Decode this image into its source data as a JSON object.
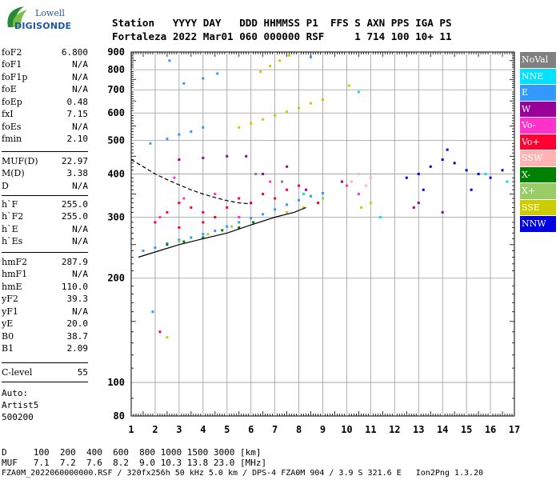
{
  "logo": {
    "line1": "Lowell",
    "line2": "DIGISONDE"
  },
  "header": {
    "line1": "Station   YYYY DAY   DDD HHMMSS P1  FFS S AXN PPS IGA PS",
    "line2": "Fortaleza 2022 Mar01 060 000000 RSF     1 714 100 10+ 11"
  },
  "params_group1": [
    {
      "name": "foF2",
      "value": "6.800"
    },
    {
      "name": "foF1",
      "value": "N/A"
    },
    {
      "name": "foF1p",
      "value": "N/A"
    },
    {
      "name": "foE",
      "value": "N/A"
    },
    {
      "name": "foEp",
      "value": "0.48"
    },
    {
      "name": "fxI",
      "value": "7.15"
    },
    {
      "name": "foEs",
      "value": "N/A"
    },
    {
      "name": "fmin",
      "value": "2.10"
    }
  ],
  "params_group2": [
    {
      "name": "MUF(D)",
      "value": "22.97"
    },
    {
      "name": "M(D)",
      "value": "3.38"
    },
    {
      "name": "D",
      "value": "N/A"
    }
  ],
  "params_group3": [
    {
      "name": "h`F",
      "value": "255.0"
    },
    {
      "name": "h`F2",
      "value": "255.0"
    },
    {
      "name": "h`E",
      "value": "N/A"
    },
    {
      "name": "h`Es",
      "value": "N/A"
    }
  ],
  "params_group4": [
    {
      "name": "hmF2",
      "value": "287.9"
    },
    {
      "name": "hmF1",
      "value": "N/A"
    },
    {
      "name": "hmE",
      "value": "110.0"
    },
    {
      "name": "yF2",
      "value": "39.3"
    },
    {
      "name": "yF1",
      "value": "N/A"
    },
    {
      "name": "yE",
      "value": "20.0"
    },
    {
      "name": "B0",
      "value": "38.7"
    },
    {
      "name": "B1",
      "value": "2.09"
    }
  ],
  "params_group5": [
    {
      "name": "C-level",
      "value": "55"
    }
  ],
  "auto": {
    "line1": "Auto:",
    "line2": "Artist5",
    "line3": "500200"
  },
  "legend": [
    {
      "label": "NoVal",
      "color": "#808080"
    },
    {
      "label": "NNE",
      "color": "#00e0ff"
    },
    {
      "label": "E",
      "color": "#3399ff"
    },
    {
      "label": "W",
      "color": "#990099"
    },
    {
      "label": "Vo-",
      "color": "#ff33cc"
    },
    {
      "label": "Vo+",
      "color": "#ff0033"
    },
    {
      "label": "SSW",
      "color": "#ffb3b3"
    },
    {
      "label": "X-",
      "color": "#008000"
    },
    {
      "label": "X+",
      "color": "#99cc66"
    },
    {
      "label": "SSE",
      "color": "#cccc00"
    },
    {
      "label": "NNW",
      "color": "#0000e0"
    }
  ],
  "footer": {
    "line1": "D     100  200  400  600  800 1000 1500 3000 [km]",
    "line2": "MUF   7.1  7.2  7.6  8.2  9.0 10.3 13.8 23.0 [MHz]",
    "line3": "FZA0M_2022060000000.RSF / 320fx256h 50 kHz 5.0 km / DPS-4 FZA0M 904 / 3.9 S 321.6 E   Ion2Png 1.3.20"
  },
  "chart_data": {
    "type": "scatter",
    "title": "",
    "xlabel": "",
    "ylabel": "",
    "xlim": [
      1,
      17
    ],
    "ylim": [
      80,
      900
    ],
    "y_scale": "log",
    "xticks": [
      1,
      2,
      3,
      4,
      5,
      6,
      7,
      8,
      9,
      10,
      11,
      12,
      13,
      14,
      15,
      16,
      17
    ],
    "yticks": [
      80,
      100,
      200,
      300,
      400,
      500,
      600,
      700,
      800,
      900
    ],
    "grid": true,
    "legend_position": "right",
    "series": [
      {
        "name": "E",
        "color": "#3399ff",
        "points": [
          [
            1.5,
            240
          ],
          [
            2,
            245
          ],
          [
            2.5,
            252
          ],
          [
            3,
            258
          ],
          [
            3.5,
            262
          ],
          [
            4,
            268
          ],
          [
            4.5,
            274
          ],
          [
            5,
            282
          ],
          [
            5.5,
            290
          ],
          [
            6,
            298
          ],
          [
            6.5,
            306
          ],
          [
            7,
            316
          ],
          [
            7.5,
            326
          ],
          [
            8,
            336
          ],
          [
            8.5,
            345
          ],
          [
            9,
            352
          ],
          [
            1.8,
            490
          ],
          [
            2.5,
            505
          ],
          [
            3,
            520
          ],
          [
            3.5,
            530
          ],
          [
            4,
            545
          ],
          [
            1.9,
            160
          ],
          [
            3.2,
            730
          ],
          [
            4,
            755
          ],
          [
            4.6,
            780
          ],
          [
            2.6,
            850
          ],
          [
            8.5,
            870
          ]
        ]
      },
      {
        "name": "SSE",
        "color": "#cccc00",
        "points": [
          [
            5.5,
            545
          ],
          [
            6,
            560
          ],
          [
            6.5,
            575
          ],
          [
            7,
            590
          ],
          [
            7.5,
            605
          ],
          [
            8,
            620
          ],
          [
            8.5,
            640
          ],
          [
            9,
            655
          ],
          [
            6.4,
            790
          ],
          [
            6.8,
            820
          ],
          [
            7.2,
            850
          ],
          [
            7.6,
            880
          ],
          [
            10.1,
            720
          ],
          [
            7.5,
            310
          ],
          [
            8.2,
            320
          ],
          [
            10.6,
            320
          ],
          [
            11,
            330
          ],
          [
            2.5,
            135
          ]
        ]
      },
      {
        "name": "Vo+",
        "color": "#ff0033",
        "points": [
          [
            2,
            290
          ],
          [
            2.5,
            310
          ],
          [
            3,
            330
          ],
          [
            3.5,
            320
          ],
          [
            4,
            310
          ],
          [
            4.5,
            300
          ],
          [
            5,
            320
          ],
          [
            5.5,
            340
          ],
          [
            6,
            330
          ],
          [
            6.5,
            350
          ],
          [
            7,
            340
          ],
          [
            7.5,
            360
          ],
          [
            3,
            280
          ],
          [
            4,
            290
          ],
          [
            8,
            370
          ],
          [
            8.8,
            330
          ],
          [
            2.2,
            140
          ]
        ]
      },
      {
        "name": "Vo-",
        "color": "#ff33cc",
        "points": [
          [
            2.2,
            300
          ],
          [
            3.2,
            340
          ],
          [
            4.5,
            350
          ],
          [
            5.5,
            300
          ],
          [
            6.8,
            380
          ],
          [
            2.8,
            390
          ],
          [
            10,
            370
          ],
          [
            10.5,
            350
          ]
        ]
      },
      {
        "name": "W",
        "color": "#990099",
        "points": [
          [
            3,
            440
          ],
          [
            4,
            445
          ],
          [
            5,
            450
          ],
          [
            5.8,
            450
          ],
          [
            6.5,
            400
          ],
          [
            7.5,
            420
          ],
          [
            8.3,
            360
          ],
          [
            14,
            310
          ],
          [
            13,
            330
          ],
          [
            9.8,
            380
          ],
          [
            12.8,
            320
          ]
        ]
      },
      {
        "name": "NNW",
        "color": "#0000e0",
        "points": [
          [
            12.5,
            390
          ],
          [
            13,
            400
          ],
          [
            13.5,
            420
          ],
          [
            14,
            440
          ],
          [
            14.5,
            430
          ],
          [
            15,
            410
          ],
          [
            15.5,
            400
          ],
          [
            16,
            390
          ],
          [
            16.5,
            410
          ],
          [
            14.2,
            470
          ],
          [
            15.2,
            360
          ],
          [
            13.2,
            360
          ]
        ]
      },
      {
        "name": "NNE",
        "color": "#00e0ff",
        "points": [
          [
            8.2,
            350
          ],
          [
            9,
            340
          ],
          [
            11.4,
            300
          ],
          [
            15.8,
            400
          ],
          [
            16.7,
            380
          ],
          [
            10.5,
            690
          ]
        ]
      },
      {
        "name": "X-",
        "color": "#008000",
        "points": [
          [
            2.5,
            250
          ],
          [
            3.2,
            255
          ],
          [
            4,
            262
          ],
          [
            4.8,
            275
          ],
          [
            5.5,
            280
          ],
          [
            6.1,
            290
          ]
        ]
      },
      {
        "name": "X+",
        "color": "#99cc66",
        "points": [
          [
            3,
            255
          ],
          [
            4.2,
            268
          ],
          [
            5.2,
            282
          ],
          [
            9,
            340
          ]
        ]
      },
      {
        "name": "SSW",
        "color": "#ffb3b3",
        "points": [
          [
            10.2,
            380
          ],
          [
            10.5,
            400
          ],
          [
            10.8,
            370
          ],
          [
            11,
            390
          ]
        ]
      },
      {
        "name": "NoVal",
        "color": "#808080",
        "points": [
          [
            6.2,
            400
          ],
          [
            7.3,
            380
          ]
        ]
      }
    ],
    "curves": [
      {
        "name": "profile",
        "color": "#000000",
        "points": [
          [
            1.3,
            230
          ],
          [
            2,
            238
          ],
          [
            3,
            250
          ],
          [
            4,
            260
          ],
          [
            5,
            270
          ],
          [
            6,
            285
          ],
          [
            7,
            300
          ],
          [
            7.8,
            310
          ],
          [
            8.3,
            320
          ]
        ]
      },
      {
        "name": "fit",
        "color": "#000000",
        "style": "dashed",
        "points": [
          [
            1,
            440
          ],
          [
            1.5,
            420
          ],
          [
            2,
            400
          ],
          [
            2.5,
            385
          ],
          [
            3,
            372
          ],
          [
            3.5,
            360
          ],
          [
            4,
            350
          ],
          [
            4.5,
            342
          ],
          [
            5,
            335
          ],
          [
            5.5,
            330
          ],
          [
            6,
            328
          ]
        ]
      }
    ]
  }
}
